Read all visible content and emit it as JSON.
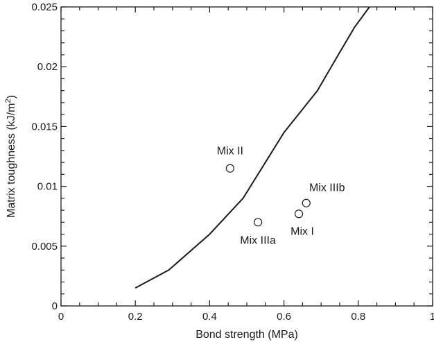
{
  "chart_data": {
    "type": "scatter",
    "title": "",
    "xlabel": "Bond strength (MPa)",
    "ylabel_prefix": "Matrix toughness (kJ/m",
    "ylabel_sup": "2",
    "ylabel_suffix": ")",
    "xlim": [
      0,
      1
    ],
    "ylim": [
      0,
      0.025
    ],
    "grid": false,
    "x_ticks": [
      0,
      0.2,
      0.4,
      0.6,
      0.8,
      1
    ],
    "x_tick_labels": [
      "0",
      "0.2",
      "0.4",
      "0.6",
      "0.8",
      "1"
    ],
    "y_ticks": [
      0,
      0.005,
      0.01,
      0.015,
      0.02,
      0.025
    ],
    "y_tick_labels": [
      "0",
      "0.005",
      "0.01",
      "0.015",
      "0.02",
      "0.025"
    ],
    "curve": {
      "x": [
        0.2,
        0.29,
        0.4,
        0.49,
        0.6,
        0.69,
        0.75,
        0.79,
        0.83
      ],
      "y": [
        0.0015,
        0.003,
        0.006,
        0.009,
        0.0145,
        0.018,
        0.0212,
        0.0233,
        0.025
      ]
    },
    "points": [
      {
        "label": "Mix II",
        "x": 0.455,
        "y": 0.0115
      },
      {
        "label": "Mix IIIa",
        "x": 0.53,
        "y": 0.007
      },
      {
        "label": "Mix I",
        "x": 0.64,
        "y": 0.0077
      },
      {
        "label": "Mix IIIb",
        "x": 0.66,
        "y": 0.0086
      }
    ]
  }
}
